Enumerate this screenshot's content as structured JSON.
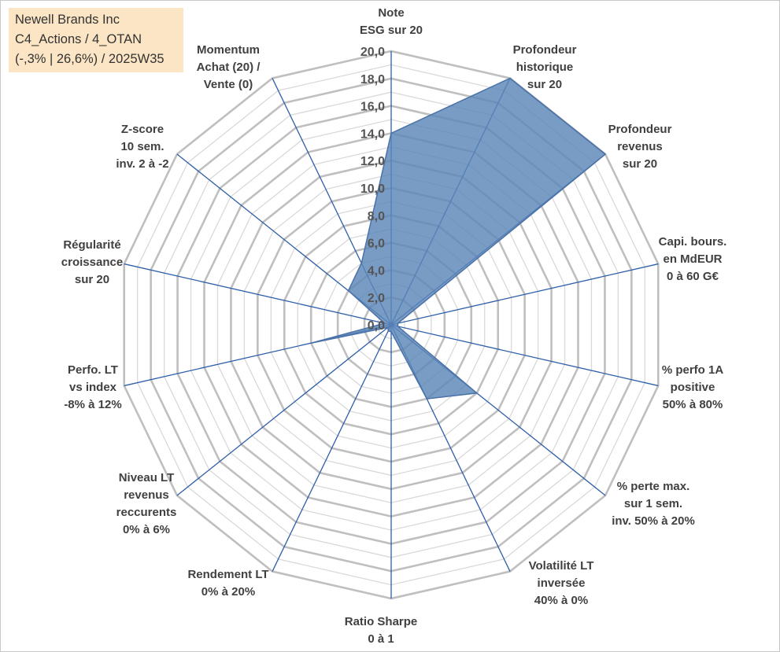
{
  "info": {
    "line1": "Newell Brands Inc",
    "line2": "C4_Actions / 4_OTAN",
    "line3": "(-,3% | 26,6%) / 2025W35"
  },
  "chart_data": {
    "type": "radar",
    "title": "",
    "axes": [
      [
        "Note",
        "ESG sur 20"
      ],
      [
        "Profondeur",
        "historique",
        "sur 20"
      ],
      [
        "Profondeur",
        "revenus",
        "sur 20"
      ],
      [
        "Capi. bours.",
        "en MdEUR",
        "0 à 60 G€"
      ],
      [
        "% perfo 1A",
        "positive",
        "50% à 80%"
      ],
      [
        "% perte max.",
        "sur 1 sem.",
        "inv. 50% à 20%"
      ],
      [
        "Volatilité LT",
        "inversée",
        "40% à 0%"
      ],
      [
        "Ratio Sharpe",
        "0 à 1"
      ],
      [
        "Rendement LT",
        "0% à 20%"
      ],
      [
        "Niveau LT",
        "revenus",
        "reccurents",
        "0% à 6%"
      ],
      [
        "Perfo. LT",
        "vs index",
        "-8% à 12%"
      ],
      [
        "Régularité",
        "croissance",
        "sur 20"
      ],
      [
        "Z-score",
        "10 sem.",
        "inv. 2 à -2"
      ],
      [
        "Momentum",
        "Achat (20) /",
        "Vente (0)"
      ]
    ],
    "series": [
      {
        "values": [
          14.0,
          20.0,
          20.0,
          0.5,
          0.5,
          8.0,
          6.0,
          0.5,
          0.5,
          0.3,
          6.0,
          0.5,
          4.0,
          5.0
        ]
      }
    ],
    "ticks": [
      "0,0",
      "2,0",
      "4,0",
      "6,0",
      "8,0",
      "10,0",
      "12,0",
      "14,0",
      "16,0",
      "18,0",
      "20,0"
    ],
    "rmin": 0,
    "rmax": 20,
    "grid": true,
    "colors": {
      "fill": "#5b86b8",
      "stroke": "#4a72a8",
      "outer_grid": "#bfbfbf",
      "inner_grid": "#d9d9d9",
      "spokes": "#2e5fa8"
    }
  }
}
